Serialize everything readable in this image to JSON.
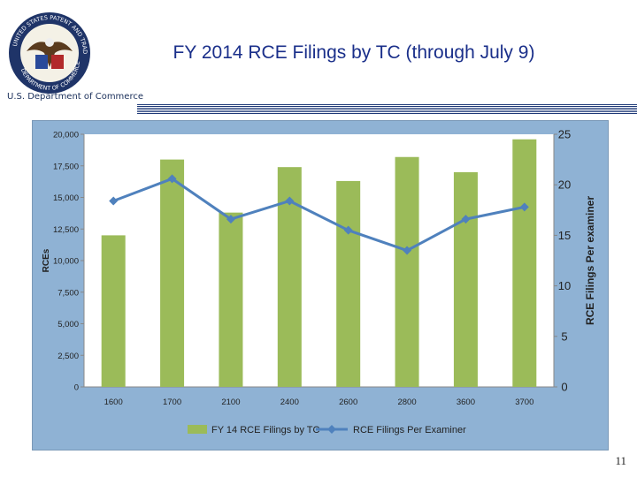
{
  "header": {
    "title": "FY 2014 RCE Filings by TC (through July 9)",
    "agency": "U.S. Department of Commerce",
    "page_number": "11"
  },
  "colors": {
    "title": "#1a2f8a",
    "bar": "#9bbb59",
    "line": "#4f81bd",
    "chart_background": "#8fb2d4"
  },
  "chart_data": {
    "type": "bar+line",
    "title": "FY 2014 RCE Filings by TC (through July 9)",
    "categories": [
      "1600",
      "1700",
      "2100",
      "2400",
      "2600",
      "2800",
      "3600",
      "3700"
    ],
    "series": [
      {
        "name": "FY 14 RCE Filings by TC",
        "type": "bar",
        "axis": "left",
        "values": [
          12000,
          18000,
          13800,
          17400,
          16300,
          18200,
          17000,
          19600
        ]
      },
      {
        "name": "RCE Filings Per Examiner",
        "type": "line",
        "axis": "right",
        "values": [
          18.4,
          20.6,
          16.6,
          18.4,
          15.5,
          13.5,
          16.6,
          17.8
        ]
      }
    ],
    "ylabel": "RCEs",
    "y2label": "RCE Filings Per examiner",
    "ylim": [
      0,
      20000
    ],
    "y2lim": [
      0,
      25
    ],
    "yticks": [
      "0",
      "2,500",
      "5,000",
      "7,500",
      "10,000",
      "12,500",
      "15,000",
      "17,500",
      "20,000"
    ],
    "y2ticks": [
      "0",
      "5",
      "10",
      "15",
      "20",
      "25"
    ],
    "legend": [
      "FY 14 RCE Filings by TC",
      "RCE Filings Per Examiner"
    ],
    "legend_position": "bottom",
    "grid": false
  }
}
